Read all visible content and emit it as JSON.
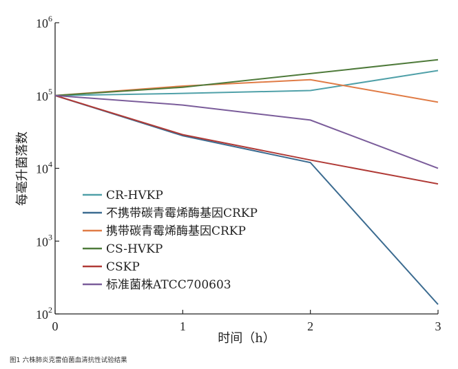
{
  "chart_data": {
    "type": "line",
    "caption": "图1 六株肺炎克雷伯菌血清抗性试验结果",
    "xlabel": "时间（h）",
    "ylabel": "每毫升菌落数",
    "x": [
      0,
      1,
      2,
      3
    ],
    "x_ticks": [
      "0",
      "1",
      "2",
      "3"
    ],
    "xlim": [
      0,
      3
    ],
    "yscale": "log",
    "ylim": [
      100,
      1000000
    ],
    "y_ticks": [
      {
        "base": "10",
        "exp": "2"
      },
      {
        "base": "10",
        "exp": "3"
      },
      {
        "base": "10",
        "exp": "4"
      },
      {
        "base": "10",
        "exp": "5"
      },
      {
        "base": "10",
        "exp": "6"
      }
    ],
    "grid": false,
    "legend_position": "lower-left",
    "series": [
      {
        "name": "CR-HVKP",
        "color": "#4fa0a8",
        "values": [
          100000,
          107000,
          117000,
          220000
        ]
      },
      {
        "name": "不携带碳青霉烯酶基因CRKP",
        "color": "#3b6b90",
        "values": [
          100000,
          28000,
          12000,
          135
        ]
      },
      {
        "name": "携带碳青霉烯酶基因CRKP",
        "color": "#e07b45",
        "values": [
          100000,
          135000,
          165000,
          81000
        ]
      },
      {
        "name": "CS-HVKP",
        "color": "#4e7a3a",
        "values": [
          100000,
          130000,
          200000,
          310000
        ]
      },
      {
        "name": "CSKP",
        "color": "#b03a36",
        "values": [
          100000,
          29000,
          13000,
          6100
        ]
      },
      {
        "name": "标准菌株ATCC700603",
        "color": "#7a5c9a",
        "values": [
          100000,
          74000,
          46000,
          10000
        ]
      }
    ]
  }
}
